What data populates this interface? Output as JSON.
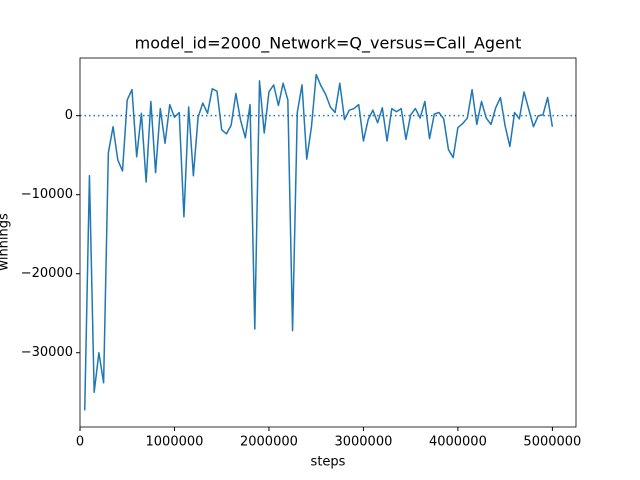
{
  "chart_data": {
    "type": "line",
    "title": "model_id=2000_Network=Q_versus=Call_Agent",
    "xlabel": "steps",
    "ylabel": "winnings",
    "x": [
      50000,
      100000,
      150000,
      200000,
      250000,
      300000,
      350000,
      400000,
      450000,
      500000,
      550000,
      600000,
      650000,
      700000,
      750000,
      800000,
      850000,
      900000,
      950000,
      1000000,
      1050000,
      1100000,
      1150000,
      1200000,
      1250000,
      1300000,
      1350000,
      1400000,
      1450000,
      1500000,
      1550000,
      1600000,
      1650000,
      1700000,
      1750000,
      1800000,
      1850000,
      1900000,
      1950000,
      2000000,
      2050000,
      2100000,
      2150000,
      2200000,
      2250000,
      2300000,
      2350000,
      2400000,
      2450000,
      2500000,
      2550000,
      2600000,
      2650000,
      2700000,
      2750000,
      2800000,
      2850000,
      2900000,
      2950000,
      3000000,
      3050000,
      3100000,
      3150000,
      3200000,
      3250000,
      3300000,
      3350000,
      3400000,
      3450000,
      3500000,
      3550000,
      3600000,
      3650000,
      3700000,
      3750000,
      3800000,
      3850000,
      3900000,
      3950000,
      4000000,
      4050000,
      4100000,
      4150000,
      4200000,
      4250000,
      4300000,
      4350000,
      4400000,
      4450000,
      4500000,
      4550000,
      4600000,
      4650000,
      4700000,
      4750000,
      4800000,
      4850000,
      4900000,
      4950000,
      5000000
    ],
    "series": [
      {
        "name": "winnings",
        "color": "#1f77b4",
        "values": [
          -37300,
          -7600,
          -35000,
          -30000,
          -33800,
          -4700,
          -1400,
          -5600,
          -7000,
          2000,
          3300,
          -5200,
          300,
          -8400,
          1800,
          -7200,
          900,
          -3500,
          1400,
          -200,
          400,
          -12800,
          1100,
          -7600,
          -200,
          1600,
          300,
          3400,
          3100,
          -1800,
          -2300,
          -1200,
          2800,
          -600,
          -2800,
          1400,
          -27000,
          4400,
          -2200,
          3000,
          3900,
          1300,
          4100,
          2000,
          -27200,
          400,
          3900,
          -5500,
          -1400,
          5200,
          3800,
          2700,
          1100,
          400,
          4100,
          -500,
          700,
          900,
          1400,
          -3200,
          -500,
          700,
          -900,
          1000,
          -3200,
          900,
          500,
          900,
          -3000,
          100,
          900,
          -300,
          1800,
          -2900,
          200,
          400,
          -400,
          -4300,
          -5300,
          -1500,
          -1000,
          -300,
          3300,
          -1100,
          1800,
          -300,
          -1100,
          1000,
          2300,
          -1300,
          -3900,
          400,
          -400,
          3000,
          800,
          -1400,
          0,
          100,
          2300,
          -1400
        ]
      }
    ],
    "xlim": [
      0,
      5250000
    ],
    "ylim": [
      -39400,
      7300
    ],
    "xticks": [
      0,
      1000000,
      2000000,
      3000000,
      4000000,
      5000000
    ],
    "yticks": [
      {
        "value": -30000,
        "label": "−30000"
      },
      {
        "value": -20000,
        "label": "−20000"
      },
      {
        "value": -10000,
        "label": "−10000"
      },
      0
    ],
    "hline": 0
  }
}
